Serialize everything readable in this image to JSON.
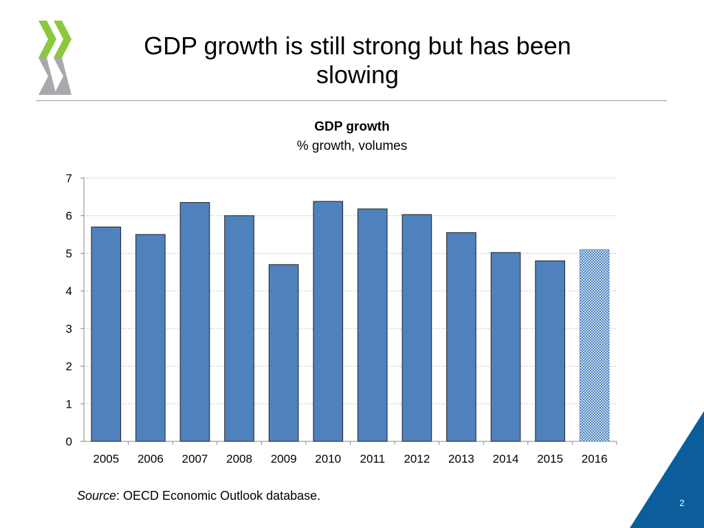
{
  "slide": {
    "title": "GDP growth is still strong but has been slowing",
    "page_number": "2",
    "source_label": "Source",
    "source_text": ": OECD Economic Outlook database."
  },
  "colors": {
    "bar": "#4f81bd",
    "bar_border": "#1f1f1f",
    "logo_green": "#8dc63f",
    "logo_gray": "#a7a9ac",
    "corner": "#0b5e9b"
  },
  "chart_data": {
    "type": "bar",
    "title": "GDP growth",
    "subtitle": "% growth, volumes",
    "categories": [
      "2005",
      "2006",
      "2007",
      "2008",
      "2009",
      "2010",
      "2011",
      "2012",
      "2013",
      "2014",
      "2015",
      "2016"
    ],
    "values": [
      5.7,
      5.5,
      6.35,
      6.0,
      4.7,
      6.38,
      6.18,
      6.03,
      5.55,
      5.02,
      4.8,
      5.1
    ],
    "projection": [
      false,
      false,
      false,
      false,
      false,
      false,
      false,
      false,
      false,
      false,
      false,
      true
    ],
    "ylim": [
      0,
      7
    ],
    "yticks": [
      0,
      1,
      2,
      3,
      4,
      5,
      6,
      7
    ],
    "xlabel": "",
    "ylabel": "",
    "grid": true
  }
}
